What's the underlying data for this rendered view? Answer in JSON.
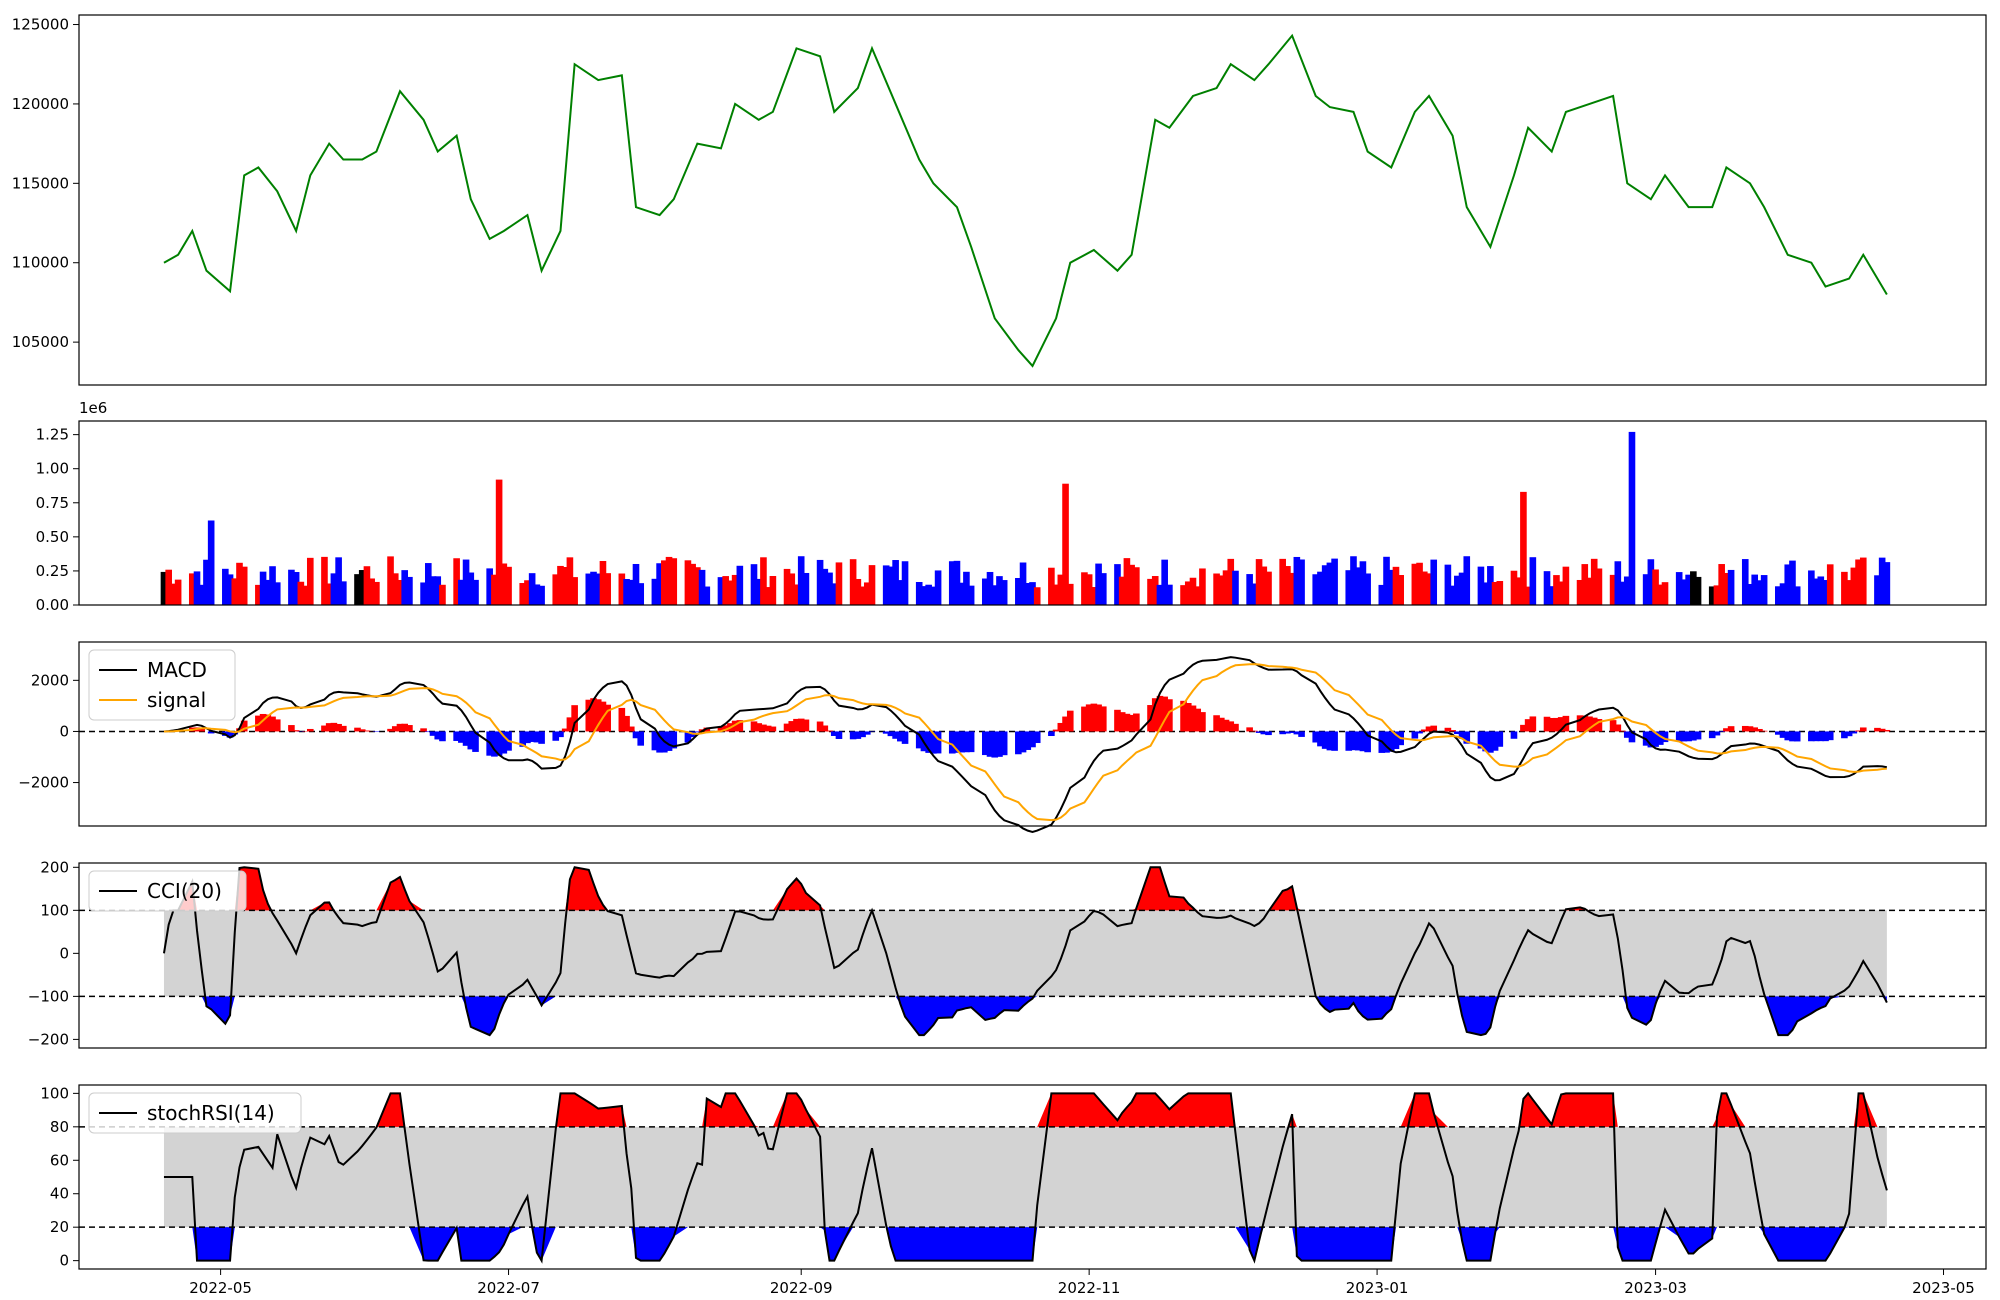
{
  "colors": {
    "price": "#008000",
    "up": "#ff0000",
    "down": "#0000ff",
    "neutral": "#000000",
    "signal": "#ffa500",
    "band": "#d3d3d3"
  },
  "chart_data": [
    {
      "type": "line",
      "panel": "price",
      "ylim": [
        102300,
        125600
      ],
      "yticks": [
        "105000",
        "110000",
        "115000",
        "120000",
        "125000"
      ],
      "x": [
        "2022-04-19",
        "2022-04-22",
        "2022-04-25",
        "2022-04-28",
        "2022-05-03",
        "2022-05-06",
        "2022-05-09",
        "2022-05-13",
        "2022-05-17",
        "2022-05-20",
        "2022-05-24",
        "2022-05-27",
        "2022-05-31",
        "2022-06-03",
        "2022-06-08",
        "2022-06-13",
        "2022-06-16",
        "2022-06-20",
        "2022-06-23",
        "2022-06-27",
        "2022-06-30",
        "2022-07-05",
        "2022-07-08",
        "2022-07-12",
        "2022-07-15",
        "2022-07-20",
        "2022-07-25",
        "2022-07-28",
        "2022-08-02",
        "2022-08-05",
        "2022-08-10",
        "2022-08-15",
        "2022-08-18",
        "2022-08-23",
        "2022-08-26",
        "2022-08-31",
        "2022-09-05",
        "2022-09-08",
        "2022-09-13",
        "2022-09-16",
        "2022-09-21",
        "2022-09-26",
        "2022-09-29",
        "2022-10-04",
        "2022-10-07",
        "2022-10-12",
        "2022-10-17",
        "2022-10-20",
        "2022-10-25",
        "2022-10-28",
        "2022-11-02",
        "2022-11-07",
        "2022-11-10",
        "2022-11-15",
        "2022-11-18",
        "2022-11-23",
        "2022-11-28",
        "2022-12-01",
        "2022-12-06",
        "2022-12-09",
        "2022-12-14",
        "2022-12-19",
        "2022-12-22",
        "2022-12-27",
        "2022-12-30",
        "2023-01-04",
        "2023-01-09",
        "2023-01-12",
        "2023-01-17",
        "2023-01-20",
        "2023-01-25",
        "2023-01-30",
        "2023-02-02",
        "2023-02-07",
        "2023-02-10",
        "2023-02-15",
        "2023-02-20",
        "2023-02-23",
        "2023-02-28",
        "2023-03-03",
        "2023-03-08",
        "2023-03-13",
        "2023-03-16",
        "2023-03-21",
        "2023-03-24",
        "2023-03-29",
        "2023-04-03",
        "2023-04-06",
        "2023-04-11",
        "2023-04-14",
        "2023-04-19"
      ],
      "series": [
        {
          "values": [
            110000,
            110500,
            112000,
            109500,
            108200,
            115500,
            116000,
            114500,
            112000,
            115500,
            117500,
            116500,
            116500,
            117000,
            120800,
            119000,
            117000,
            118000,
            114000,
            111500,
            112000,
            113000,
            109500,
            112000,
            122500,
            121500,
            121800,
            113500,
            113000,
            114000,
            117500,
            117200,
            120000,
            119000,
            119500,
            123500,
            123000,
            119500,
            121000,
            123500,
            120000,
            116500,
            115000,
            113500,
            111000,
            106500,
            104500,
            103500,
            106500,
            110000,
            110800,
            109500,
            110500,
            119000,
            118500,
            120500,
            121000,
            122500,
            121500,
            122500,
            124300,
            120500,
            119800,
            119500,
            117000,
            116000,
            119500,
            120500,
            118000,
            113500,
            111000,
            115500,
            118500,
            117000,
            119500,
            120000,
            120500,
            115000,
            114000,
            115500,
            113500,
            113500,
            116000,
            115000,
            113500,
            110500,
            110000,
            108500,
            109000,
            110500,
            108000
          ]
        }
      ]
    },
    {
      "type": "bar",
      "panel": "volume",
      "ylim": [
        0,
        1350000
      ],
      "scale_label": "1e6",
      "yticks": [
        "0.00",
        "0.25",
        "0.50",
        "0.75",
        "1.00",
        "1.25"
      ],
      "notable_bars": [
        {
          "x": "2022-04-29",
          "value": 620000
        },
        {
          "x": "2022-06-29",
          "value": 920000
        },
        {
          "x": "2022-10-27",
          "value": 890000
        },
        {
          "x": "2023-02-01",
          "value": 830000
        },
        {
          "x": "2023-02-24",
          "value": 1270000
        }
      ]
    },
    {
      "type": "line",
      "panel": "macd",
      "ylim": [
        -3700,
        3500
      ],
      "yticks": [
        "2000",
        "0",
        "−2000"
      ],
      "series": [
        {
          "name": "MACD",
          "color": "#000000"
        },
        {
          "name": "signal",
          "color": "#ffa500"
        }
      ]
    },
    {
      "type": "line",
      "panel": "cci",
      "ylim": [
        -220,
        210
      ],
      "yticks": [
        "200",
        "100",
        "0",
        "−100",
        "−200"
      ],
      "thresholds": [
        100,
        -100
      ],
      "series": [
        {
          "name": "CCI(20)",
          "color": "#000000"
        }
      ]
    },
    {
      "type": "line",
      "panel": "stochrsi",
      "ylim": [
        -5,
        105
      ],
      "yticks": [
        "100",
        "80",
        "60",
        "40",
        "20",
        "0"
      ],
      "thresholds": [
        80,
        20
      ],
      "series": [
        {
          "name": "stochRSI(14)",
          "color": "#000000"
        }
      ]
    }
  ],
  "xaxis": {
    "range": [
      "2022-04-01",
      "2023-05-10"
    ],
    "ticks": [
      "2022-05",
      "2022-07",
      "2022-09",
      "2022-11",
      "2023-01",
      "2023-03",
      "2023-05"
    ]
  }
}
